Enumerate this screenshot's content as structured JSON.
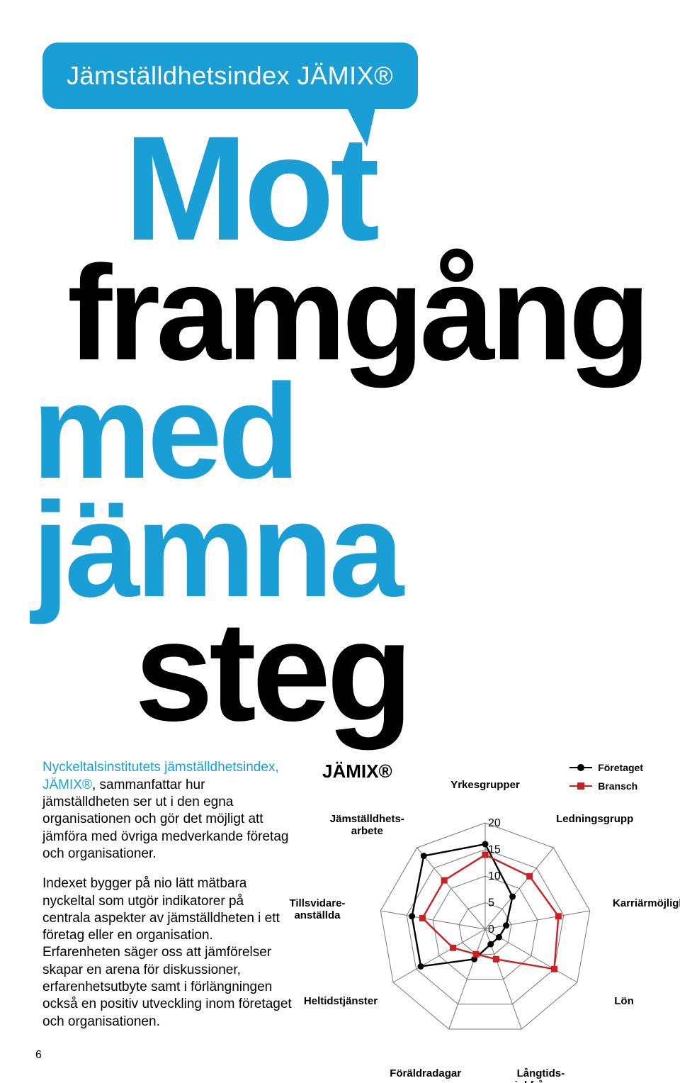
{
  "colors": {
    "accent": "#199fd6",
    "black": "#000000",
    "red": "#cc1f1f",
    "grid": "#777777",
    "white": "#ffffff"
  },
  "header": {
    "bubble_text": "Jämställdhetsindex JÄMIX®"
  },
  "headline": {
    "line1": "Mot",
    "line2": "framgång",
    "line3": "med jämna",
    "line4": "steg"
  },
  "body": {
    "p1_lead": "Nyckeltalsinstitutets jämställdhetsindex, JÄMIX®",
    "p1_rest": ", sammanfattar hur jämställdheten ser ut i den egna organisationen och gör det möjligt att jämföra med övriga medverkande företag och organisationer.",
    "p2": "Indexet bygger på nio lätt mätbara nyckeltal som utgör indikatorer på centrala aspekter av jämställdheten i ett företag eller en organisation. Erfarenheten säger oss att jämförelser skapar en arena för diskussioner, erfarenhetsutbyte samt i förlängningen också en positiv utveckling inom företaget och organisationen."
  },
  "chart": {
    "type": "radar",
    "title": "JÄMIX®",
    "axes": [
      "Yrkesgrupper",
      "Ledningsgrupp",
      "Karriärmöjligheter",
      "Lön",
      "Långtids-\nsjukfrånvaro",
      "Föräldradagar",
      "Heltidstjänster",
      "Tillsvidare-\nanställda",
      "Jämställdhets-\narbete"
    ],
    "ticks": [
      0,
      5,
      10,
      15,
      20
    ],
    "tick_fontsize": 16,
    "label_fontsize": 15,
    "max": 20,
    "series": [
      {
        "name": "Företaget",
        "color": "#000000",
        "marker": "circle",
        "values": [
          16,
          8,
          4,
          3,
          3,
          6,
          14,
          14,
          18
        ]
      },
      {
        "name": "Bransch",
        "color": "#cc1f1f",
        "marker": "square",
        "values": [
          14,
          13,
          14,
          15,
          6,
          5,
          7,
          12,
          12
        ]
      }
    ],
    "grid_color": "#777777",
    "background_color": "#ffffff",
    "stroke_width": 2.4,
    "marker_size": 9
  },
  "page_number": "6"
}
